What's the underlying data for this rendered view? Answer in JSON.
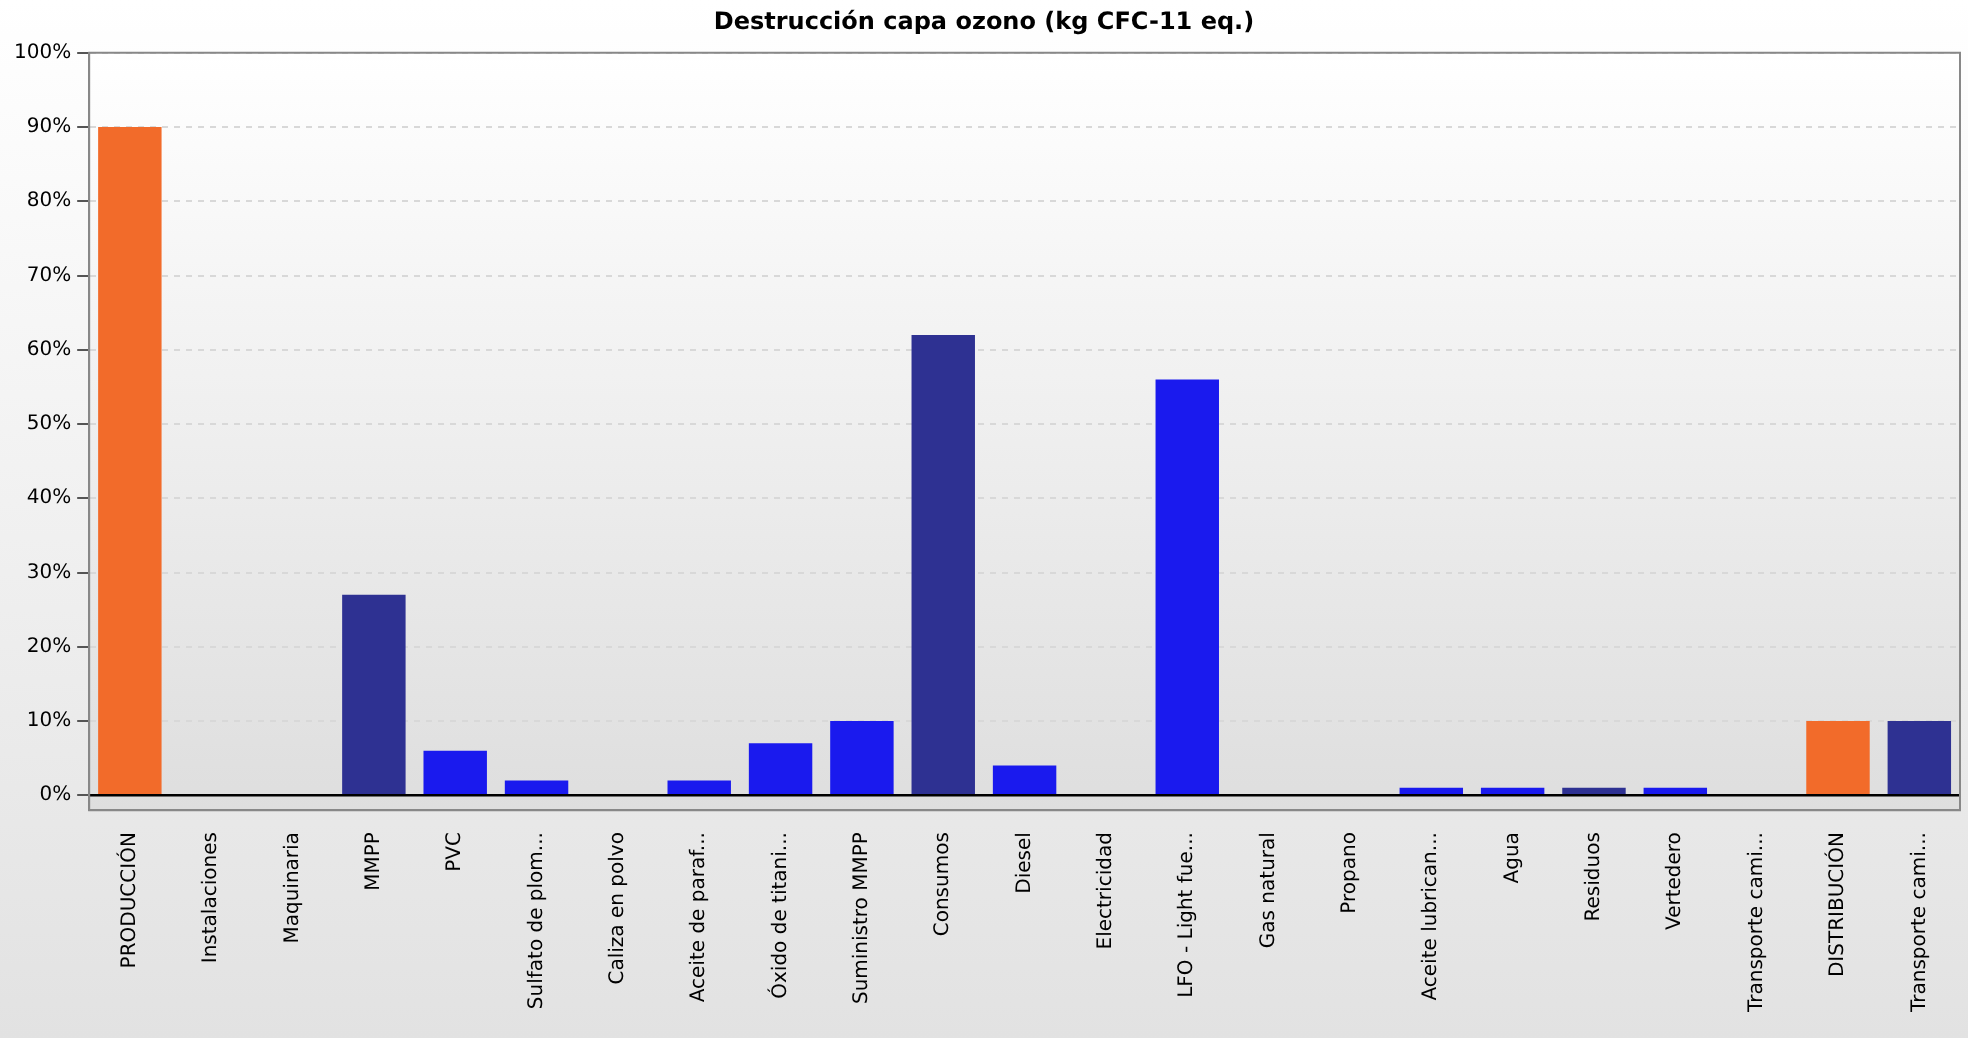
{
  "chart_data": {
    "type": "bar",
    "title": "Destrucción capa ozono (kg CFC-11 eq.)",
    "categories": [
      "PRODUCCIÓN",
      "Instalaciones",
      "Maquinaria",
      "MMPP",
      "PVC",
      "Sulfato de plom...",
      "Caliza en polvo",
      "Aceite de paraf...",
      "Óxido de titani...",
      "Suministro MMPP",
      "Consumos",
      "Diesel",
      "Electricidad",
      "LFO - Light fue...",
      "Gas natural",
      "Propano",
      "Aceite lubrican...",
      "Agua",
      "Residuos",
      "Vertedero",
      "Transporte cami...",
      "DISTRIBUCIÓN",
      "Transporte cami..."
    ],
    "values": [
      90,
      0,
      0,
      27,
      6,
      2,
      0,
      2,
      7,
      10,
      62,
      4,
      0,
      56,
      0,
      0,
      1,
      1,
      1,
      1,
      0,
      10,
      10
    ],
    "colors": [
      "#f26b2a",
      "#1a1aee",
      "#1a1aee",
      "#2e3192",
      "#1a1aee",
      "#1a1aee",
      "#1a1aee",
      "#1a1aee",
      "#1a1aee",
      "#1a1aee",
      "#2e3192",
      "#1a1aee",
      "#1a1aee",
      "#1a1aee",
      "#1a1aee",
      "#1a1aee",
      "#1a1aee",
      "#1a1aee",
      "#2e3192",
      "#1a1aee",
      "#1a1aee",
      "#f26b2a",
      "#2e3192"
    ],
    "ylim": [
      -2,
      100
    ],
    "yticks": [
      {
        "value": 0,
        "label": "0%"
      },
      {
        "value": 10,
        "label": "10%"
      },
      {
        "value": 20,
        "label": "20%"
      },
      {
        "value": 30,
        "label": "30%"
      },
      {
        "value": 40,
        "label": "40%"
      },
      {
        "value": 50,
        "label": "50%"
      },
      {
        "value": 60,
        "label": "60%"
      },
      {
        "value": 70,
        "label": "70%"
      },
      {
        "value": 80,
        "label": "80%"
      },
      {
        "value": 90,
        "label": "90%"
      },
      {
        "value": 100,
        "label": "100%"
      }
    ],
    "ref_lines": [
      {
        "axis": "y",
        "value": 0,
        "color": "#000000"
      }
    ],
    "grid": "y",
    "legend": false
  }
}
